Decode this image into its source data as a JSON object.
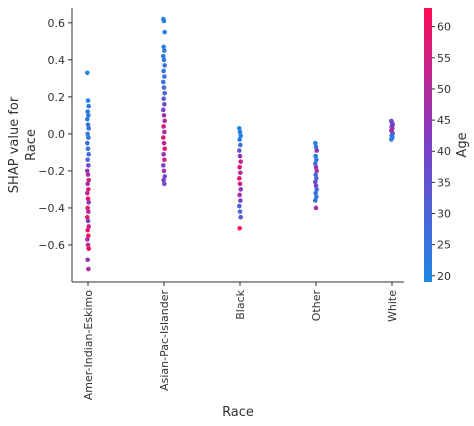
{
  "chart_data": {
    "type": "scatter",
    "xlabel": "Race",
    "ylabel_lines": [
      "SHAP value for",
      "Race"
    ],
    "categories": [
      "Amer-Indian-Eskimo",
      "Asian-Pac-Islander",
      "Black",
      "Other",
      "White"
    ],
    "ylim": [
      -0.8,
      0.68
    ],
    "yticks": [
      -0.6,
      -0.4,
      -0.2,
      0.0,
      0.2,
      0.4,
      0.6
    ],
    "ytick_labels": [
      "−0.6",
      "−0.4",
      "−0.2",
      "0.0",
      "0.2",
      "0.4",
      "0.6"
    ],
    "colorbar": {
      "label": "Age",
      "range": [
        19,
        63
      ],
      "ticks": [
        20,
        25,
        30,
        35,
        40,
        45,
        50,
        55,
        60
      ],
      "tick_labels": [
        "20",
        "25",
        "30",
        "35",
        "40",
        "45",
        "50",
        "55",
        "60"
      ],
      "color_low": "#1e88e5",
      "color_mid": "#7b3fc8",
      "color_high": "#ff0d57"
    },
    "series": [
      {
        "category": "Amer-Indian-Eskimo",
        "points": [
          {
            "y": 0.33,
            "age": 20
          },
          {
            "y": 0.18,
            "age": 21
          },
          {
            "y": 0.15,
            "age": 22
          },
          {
            "y": 0.12,
            "age": 22
          },
          {
            "y": 0.1,
            "age": 23
          },
          {
            "y": 0.08,
            "age": 21
          },
          {
            "y": 0.05,
            "age": 24
          },
          {
            "y": 0.03,
            "age": 25
          },
          {
            "y": 0.0,
            "age": 23
          },
          {
            "y": -0.02,
            "age": 24
          },
          {
            "y": -0.05,
            "age": 26
          },
          {
            "y": -0.08,
            "age": 25
          },
          {
            "y": -0.11,
            "age": 27
          },
          {
            "y": -0.14,
            "age": 30
          },
          {
            "y": -0.17,
            "age": 38
          },
          {
            "y": -0.2,
            "age": 45
          },
          {
            "y": -0.22,
            "age": 50
          },
          {
            "y": -0.25,
            "age": 55
          },
          {
            "y": -0.27,
            "age": 48
          },
          {
            "y": -0.3,
            "age": 58
          },
          {
            "y": -0.32,
            "age": 52
          },
          {
            "y": -0.35,
            "age": 60
          },
          {
            "y": -0.37,
            "age": 44
          },
          {
            "y": -0.4,
            "age": 57
          },
          {
            "y": -0.42,
            "age": 50
          },
          {
            "y": -0.45,
            "age": 60
          },
          {
            "y": -0.47,
            "age": 42
          },
          {
            "y": -0.5,
            "age": 55
          },
          {
            "y": -0.52,
            "age": 58
          },
          {
            "y": -0.55,
            "age": 61
          },
          {
            "y": -0.57,
            "age": 48
          },
          {
            "y": -0.6,
            "age": 52
          },
          {
            "y": -0.62,
            "age": 60
          },
          {
            "y": -0.68,
            "age": 45
          },
          {
            "y": -0.73,
            "age": 50
          }
        ]
      },
      {
        "category": "Asian-Pac-Islander",
        "points": [
          {
            "y": 0.62,
            "age": 20
          },
          {
            "y": 0.61,
            "age": 21
          },
          {
            "y": 0.55,
            "age": 22
          },
          {
            "y": 0.47,
            "age": 22
          },
          {
            "y": 0.45,
            "age": 23
          },
          {
            "y": 0.42,
            "age": 24
          },
          {
            "y": 0.4,
            "age": 23
          },
          {
            "y": 0.37,
            "age": 25
          },
          {
            "y": 0.34,
            "age": 24
          },
          {
            "y": 0.31,
            "age": 26
          },
          {
            "y": 0.28,
            "age": 27
          },
          {
            "y": 0.25,
            "age": 28
          },
          {
            "y": 0.22,
            "age": 30
          },
          {
            "y": 0.19,
            "age": 33
          },
          {
            "y": 0.16,
            "age": 36
          },
          {
            "y": 0.13,
            "age": 40
          },
          {
            "y": 0.1,
            "age": 45
          },
          {
            "y": 0.07,
            "age": 50
          },
          {
            "y": 0.04,
            "age": 54
          },
          {
            "y": 0.01,
            "age": 48
          },
          {
            "y": -0.02,
            "age": 56
          },
          {
            "y": -0.05,
            "age": 52
          },
          {
            "y": -0.08,
            "age": 58
          },
          {
            "y": -0.11,
            "age": 44
          },
          {
            "y": -0.14,
            "age": 55
          },
          {
            "y": -0.17,
            "age": 40
          },
          {
            "y": -0.2,
            "age": 46
          },
          {
            "y": -0.23,
            "age": 38
          },
          {
            "y": -0.25,
            "age": 42
          },
          {
            "y": -0.27,
            "age": 36
          }
        ]
      },
      {
        "category": "Black",
        "points": [
          {
            "y": 0.03,
            "age": 20
          },
          {
            "y": 0.01,
            "age": 22
          },
          {
            "y": -0.01,
            "age": 21
          },
          {
            "y": -0.03,
            "age": 23
          },
          {
            "y": -0.06,
            "age": 26
          },
          {
            "y": -0.09,
            "age": 35
          },
          {
            "y": -0.12,
            "age": 45
          },
          {
            "y": -0.15,
            "age": 52
          },
          {
            "y": -0.18,
            "age": 58
          },
          {
            "y": -0.21,
            "age": 48
          },
          {
            "y": -0.24,
            "age": 60
          },
          {
            "y": -0.27,
            "age": 55
          },
          {
            "y": -0.3,
            "age": 42
          },
          {
            "y": -0.33,
            "age": 50
          },
          {
            "y": -0.36,
            "age": 38
          },
          {
            "y": -0.39,
            "age": 32
          },
          {
            "y": -0.42,
            "age": 28
          },
          {
            "y": -0.45,
            "age": 35
          },
          {
            "y": -0.51,
            "age": 60
          }
        ]
      },
      {
        "category": "Other",
        "points": [
          {
            "y": -0.05,
            "age": 21
          },
          {
            "y": -0.07,
            "age": 24
          },
          {
            "y": -0.09,
            "age": 44
          },
          {
            "y": -0.12,
            "age": 23
          },
          {
            "y": -0.14,
            "age": 22
          },
          {
            "y": -0.16,
            "age": 26
          },
          {
            "y": -0.18,
            "age": 46
          },
          {
            "y": -0.2,
            "age": 50
          },
          {
            "y": -0.22,
            "age": 27
          },
          {
            "y": -0.24,
            "age": 30
          },
          {
            "y": -0.26,
            "age": 34
          },
          {
            "y": -0.28,
            "age": 40
          },
          {
            "y": -0.3,
            "age": 28
          },
          {
            "y": -0.32,
            "age": 25
          },
          {
            "y": -0.34,
            "age": 24
          },
          {
            "y": -0.36,
            "age": 26
          },
          {
            "y": -0.4,
            "age": 47
          }
        ]
      },
      {
        "category": "White",
        "points": [
          {
            "y": 0.07,
            "age": 38
          },
          {
            "y": 0.06,
            "age": 40
          },
          {
            "y": 0.05,
            "age": 42
          },
          {
            "y": 0.04,
            "age": 36
          },
          {
            "y": 0.03,
            "age": 44
          },
          {
            "y": 0.02,
            "age": 50
          },
          {
            "y": 0.01,
            "age": 46
          },
          {
            "y": 0.0,
            "age": 33
          },
          {
            "y": -0.01,
            "age": 28
          },
          {
            "y": -0.02,
            "age": 25
          },
          {
            "y": -0.03,
            "age": 23
          }
        ]
      }
    ]
  }
}
